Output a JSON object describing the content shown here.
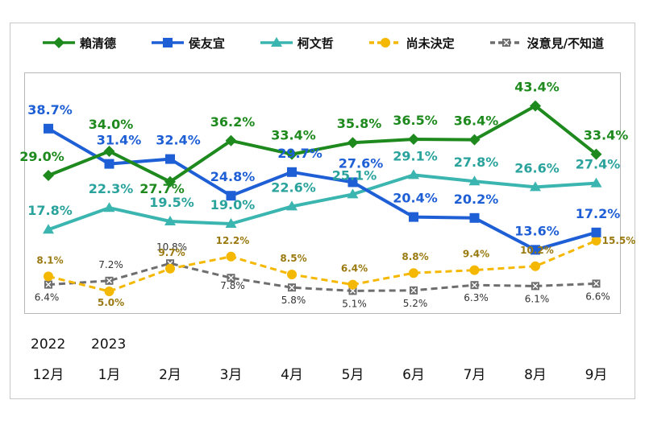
{
  "chart_data": {
    "type": "line",
    "title": "",
    "xlabel": "",
    "ylabel": "",
    "ylim": [
      0,
      50
    ],
    "grid": false,
    "legend_position": "top",
    "year_labels": [
      "2022",
      "2023"
    ],
    "categories": [
      "12月",
      "1月",
      "2月",
      "3月",
      "4月",
      "5月",
      "6月",
      "7月",
      "8月",
      "9月"
    ],
    "series": [
      {
        "name": "賴清德",
        "color": "#1e8a1e",
        "marker": "diamond",
        "dash": "solid",
        "values": [
          29.0,
          34.0,
          27.7,
          36.2,
          33.4,
          35.8,
          36.5,
          36.4,
          43.4,
          33.4
        ],
        "labels": [
          "29.0%",
          "34.0%",
          "27.7%",
          "36.2%",
          "33.4%",
          "35.8%",
          "36.5%",
          "36.4%",
          "43.4%",
          "33.4%"
        ]
      },
      {
        "name": "侯友宜",
        "color": "#1f5fd6",
        "marker": "square",
        "dash": "solid",
        "values": [
          38.7,
          31.4,
          32.4,
          24.8,
          29.7,
          27.6,
          20.4,
          20.2,
          13.6,
          17.2
        ],
        "labels": [
          "38.7%",
          "31.4%",
          "32.4%",
          "24.8%",
          "29.7%",
          "27.6%",
          "20.4%",
          "20.2%",
          "13.6%",
          "17.2%"
        ]
      },
      {
        "name": "柯文哲",
        "color": "#3bb5b0",
        "marker": "triangle",
        "dash": "solid",
        "values": [
          17.8,
          22.3,
          19.5,
          19.0,
          22.6,
          25.1,
          29.1,
          27.8,
          26.6,
          27.4
        ],
        "labels": [
          "17.8%",
          "22.3%",
          "19.5%",
          "19.0%",
          "22.6%",
          "25.1%",
          "29.1%",
          "27.8%",
          "26.6%",
          "27.4%"
        ]
      },
      {
        "name": "尚未決定",
        "color": "#f5b800",
        "marker": "circle",
        "dash": "dashed",
        "values": [
          8.1,
          5.0,
          9.7,
          12.2,
          8.5,
          6.4,
          8.8,
          9.4,
          10.2,
          15.5
        ],
        "labels": [
          "8.1%",
          "5.0%",
          "9.7%",
          "12.2%",
          "8.5%",
          "6.4%",
          "8.8%",
          "9.4%",
          "10.2%",
          "15.5%"
        ]
      },
      {
        "name": "沒意見/不知道",
        "color": "#6e6e6e",
        "marker": "x-square",
        "dash": "dashed",
        "values": [
          6.4,
          7.2,
          10.8,
          7.8,
          5.8,
          5.1,
          5.2,
          6.3,
          6.1,
          6.6
        ],
        "labels": [
          "6.4%",
          "7.2%",
          "10.8%",
          "7.8%",
          "5.8%",
          "5.1%",
          "5.2%",
          "6.3%",
          "6.1%",
          "6.6%"
        ]
      }
    ]
  }
}
